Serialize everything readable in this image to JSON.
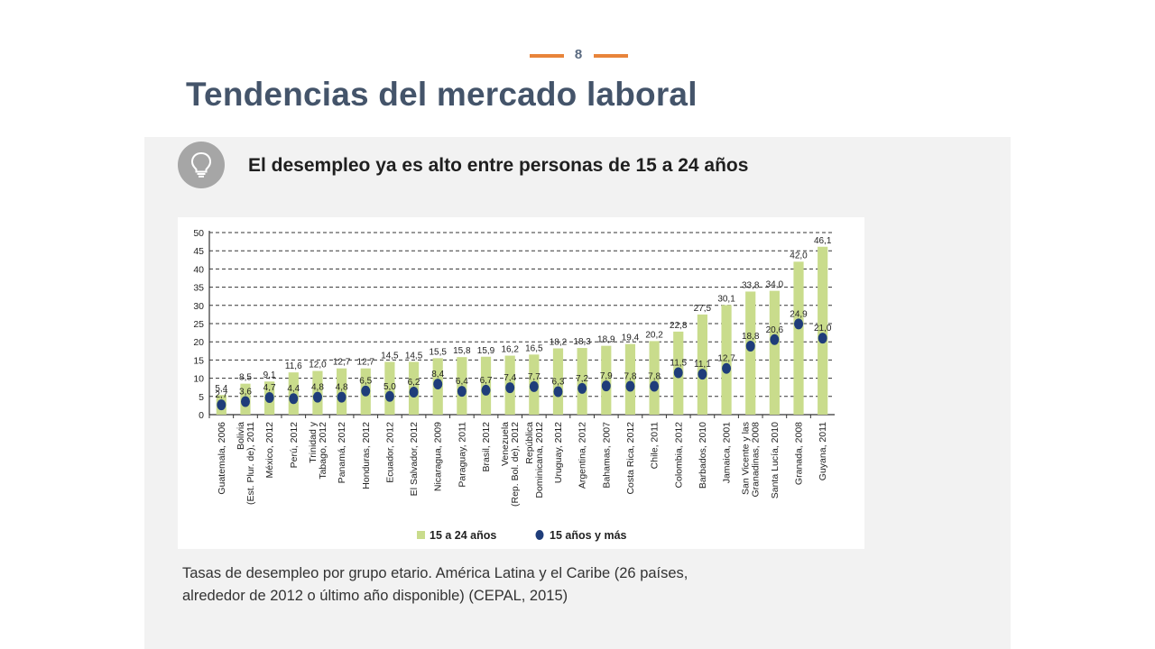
{
  "slide": {
    "page_number": "8",
    "title": "Tendencias del mercado laboral",
    "subtitle": "El desempleo ya es alto entre personas de 15 a 24 años",
    "caption_line1": "Tasas de desempleo por grupo etario. América Latina y el Caribe (26 países,",
    "caption_line2": "alrededor de 2012 o último año disponible) (CEPAL, 2015)",
    "icon": "lightbulb-icon",
    "accent_color": "#e8843a",
    "title_color": "#44546a"
  },
  "chart_data": {
    "type": "bar",
    "title": "",
    "xlabel": "",
    "ylabel": "",
    "ylim": [
      0,
      50
    ],
    "yticks": [
      "0",
      "5",
      "10",
      "15",
      "20",
      "25",
      "30",
      "35",
      "40",
      "45",
      "50"
    ],
    "grid": true,
    "legend_position": "bottom",
    "categories": [
      [
        "Guatemala, 2006"
      ],
      [
        "Bolivia",
        "(Est. Plur. de), 2011"
      ],
      [
        "México, 2012"
      ],
      [
        "Perú, 2012"
      ],
      [
        "Trinidad y",
        "Tabago, 2012"
      ],
      [
        "Panamá, 2012"
      ],
      [
        "Honduras, 2012"
      ],
      [
        "Ecuador, 2012"
      ],
      [
        "El Salvador, 2012"
      ],
      [
        "Nicaragua, 2009"
      ],
      [
        "Paraguay, 2011"
      ],
      [
        "Brasil, 2012"
      ],
      [
        "Venezuela",
        "(Rep. Bol. de), 2012"
      ],
      [
        "República",
        "Dominicana, 2012"
      ],
      [
        "Uruguay, 2012"
      ],
      [
        "Argentina, 2012"
      ],
      [
        "Bahamas, 2007"
      ],
      [
        "Costa Rica, 2012"
      ],
      [
        "Chile, 2011"
      ],
      [
        "Colombia, 2012"
      ],
      [
        "Barbados, 2010"
      ],
      [
        "Jamaica, 2001"
      ],
      [
        "San Vicente y las",
        "Granadinas, 2008"
      ],
      [
        "Santa Lucía, 2010"
      ],
      [
        "Granada, 2008"
      ],
      [
        "Guyana, 2011"
      ]
    ],
    "series": [
      {
        "name": "15 a 24 años",
        "kind": "bar",
        "color": "#c9dc8c",
        "values": [
          5.4,
          8.5,
          9.1,
          11.6,
          12.0,
          12.7,
          12.7,
          14.5,
          14.5,
          15.5,
          15.8,
          15.9,
          16.2,
          16.5,
          18.2,
          18.3,
          18.9,
          19.4,
          20.2,
          22.8,
          27.5,
          30.1,
          33.8,
          34.0,
          42.0,
          46.1
        ],
        "labels": [
          "5,4",
          "8,5",
          "9,1",
          "11,6",
          "12,0",
          "12,7",
          "12,7",
          "14,5",
          "14,5",
          "15,5",
          "15,8",
          "15,9",
          "16,2",
          "16,5",
          "18,2",
          "18,3",
          "18,9",
          "19,4",
          "20,2",
          "22,8",
          "27,5",
          "30,1",
          "33,8",
          "34,0",
          "42,0",
          "46,1"
        ]
      },
      {
        "name": "15 años y más",
        "kind": "dot",
        "color": "#1f3d7a",
        "values": [
          2.7,
          3.6,
          4.7,
          4.4,
          4.8,
          4.8,
          6.5,
          5.0,
          6.2,
          8.4,
          6.4,
          6.7,
          7.4,
          7.7,
          6.3,
          7.2,
          7.9,
          7.8,
          7.8,
          11.5,
          11.1,
          12.7,
          18.8,
          20.6,
          24.9,
          21.0
        ],
        "labels": [
          "2,7",
          "3,6",
          "4,7",
          "4,4",
          "4,8",
          "4,8",
          "6,5",
          "5,0",
          "6,2",
          "8,4",
          "6,4",
          "6,7",
          "7,4",
          "7,7",
          "6,3",
          "7,2",
          "7,9",
          "7,8",
          "7,8",
          "11,5",
          "11,1",
          "12,7",
          "18,8",
          "20,6",
          "24,9",
          "21,0"
        ]
      }
    ]
  }
}
